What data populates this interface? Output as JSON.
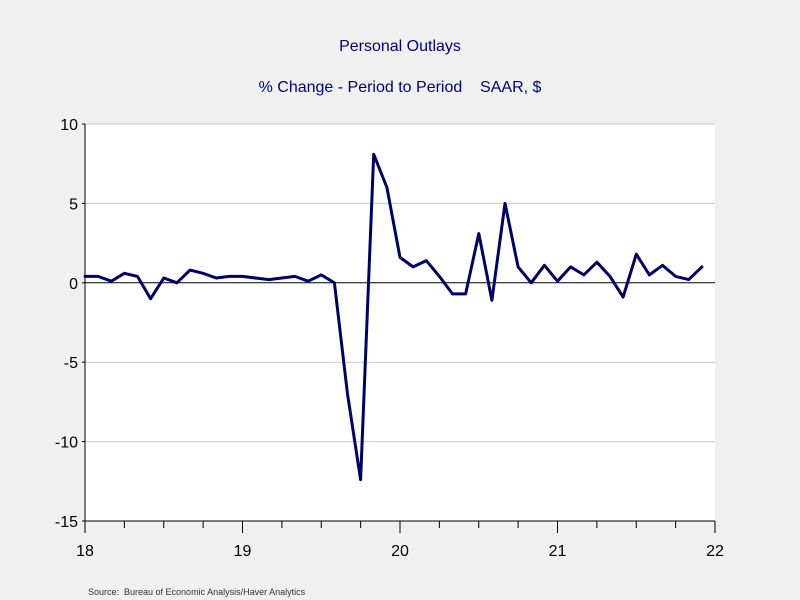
{
  "chart_data": {
    "type": "line",
    "title": "Personal Outlays",
    "subtitle": "% Change - Period to Period    SAAR, $",
    "source": "Source:  Bureau of Economic Analysis/Haver Analytics",
    "x_tick_labels": [
      "18",
      "19",
      "20",
      "21",
      "22"
    ],
    "x_range": [
      2018.0,
      2022.0
    ],
    "y_ticks": [
      10,
      5,
      0,
      -5,
      -10,
      -15
    ],
    "y_tick_labels": [
      "10",
      "5",
      "0",
      "-5",
      "-10",
      "-15"
    ],
    "ylim": [
      -15,
      10
    ],
    "grid": true,
    "colors": {
      "line": "#000066",
      "background": "#f0f0f0",
      "plot_background": "#ffffff",
      "grid": "#c8c8c8"
    },
    "series": [
      {
        "x": [
          "2018-01",
          "2018-02",
          "2018-03",
          "2018-04",
          "2018-05",
          "2018-06",
          "2018-07",
          "2018-08",
          "2018-09",
          "2018-10",
          "2018-11",
          "2018-12",
          "2019-01",
          "2019-02",
          "2019-03",
          "2019-04",
          "2019-05",
          "2019-06",
          "2019-07",
          "2019-08",
          "2019-09",
          "2019-10",
          "2019-11",
          "2019-12",
          "2020-01",
          "2020-02",
          "2020-03",
          "2020-04",
          "2020-05",
          "2020-06",
          "2020-07",
          "2020-08",
          "2020-09",
          "2020-10",
          "2020-11",
          "2020-12",
          "2021-01",
          "2021-02",
          "2021-03",
          "2021-04",
          "2021-05",
          "2021-06",
          "2021-07",
          "2021-08",
          "2021-09",
          "2021-10",
          "2021-11",
          "2021-12"
        ],
        "values": [
          0.4,
          0.4,
          0.1,
          0.6,
          0.4,
          -1.0,
          0.3,
          0.0,
          0.8,
          0.6,
          0.3,
          0.4,
          0.4,
          0.3,
          0.2,
          0.3,
          0.4,
          0.1,
          0.5,
          0.0,
          -7.0,
          -12.4,
          8.1,
          6.0,
          1.6,
          1.0,
          1.4,
          0.4,
          -0.7,
          -0.7,
          3.1,
          -1.1,
          5.0,
          1.0,
          0.0,
          1.1,
          0.1,
          1.0,
          0.5,
          1.3,
          0.4,
          -0.9,
          1.8,
          0.5,
          1.1,
          0.4,
          0.2,
          1.0
        ]
      }
    ]
  }
}
